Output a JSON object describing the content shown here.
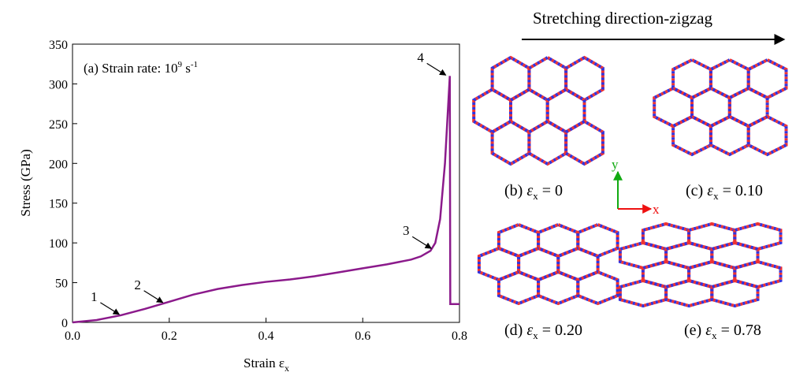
{
  "chart_data": {
    "type": "line",
    "y_label": "Stress (GPa)",
    "x_label": "Strain ε",
    "x_label_sub": "x",
    "annotation": {
      "text": "(a) Strain rate: ",
      "base": "10",
      "exp": "9",
      "unit": " s",
      "unit_exp": "-1"
    },
    "x": [
      0,
      0.05,
      0.1,
      0.15,
      0.2,
      0.25,
      0.3,
      0.35,
      0.4,
      0.45,
      0.5,
      0.55,
      0.6,
      0.65,
      0.7,
      0.72,
      0.74,
      0.75,
      0.76,
      0.77,
      0.78,
      0.781,
      0.79,
      0.8
    ],
    "series": [
      {
        "color": "#8b1a8b",
        "values": [
          0,
          3,
          9,
          17,
          26,
          35,
          42,
          47,
          51,
          54,
          58,
          63,
          68,
          73,
          79,
          83,
          90,
          100,
          130,
          200,
          310,
          23,
          23,
          23
        ]
      }
    ],
    "xlim": [
      0,
      0.8
    ],
    "ylim": [
      0,
      350
    ],
    "xticks": [
      {
        "value": 0,
        "label": "0.0"
      },
      0.2,
      0.4,
      0.6,
      0.8
    ],
    "yticks": [
      0,
      50,
      100,
      150,
      200,
      250,
      300,
      350
    ],
    "points": [
      {
        "label": "1",
        "x": 0.1,
        "y": 9
      },
      {
        "label": "2",
        "x": 0.19,
        "y": 24
      },
      {
        "label": "3",
        "x": 0.745,
        "y": 92
      },
      {
        "label": "4",
        "x": 0.775,
        "y": 310
      }
    ]
  },
  "figure": {
    "title": "Stretching direction-zigzag",
    "axes_labels": {
      "y": "y",
      "x": "x"
    },
    "panels": [
      {
        "label": "(b) ",
        "symbol": "ε",
        "sub": "x",
        "value": " = 0"
      },
      {
        "label": "(c) ",
        "symbol": "ε",
        "sub": "x",
        "value": " = 0.10"
      },
      {
        "label": "(d) ",
        "symbol": "ε",
        "sub": "x",
        "value": " = 0.20"
      },
      {
        "label": "(e) ",
        "symbol": "ε",
        "sub": "x",
        "value": " = 0.78"
      }
    ]
  }
}
